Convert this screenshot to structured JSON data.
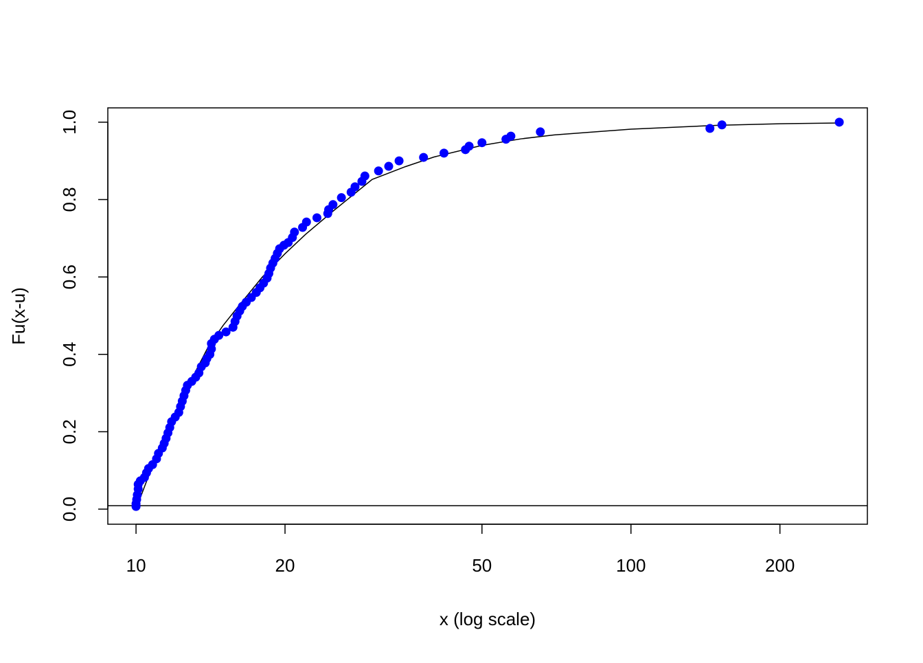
{
  "chart_data": {
    "type": "scatter",
    "xlabel": "x (log scale)",
    "ylabel": "Fu(x-u)",
    "xscale": "log",
    "xlim": [
      8.77,
      300.4
    ],
    "ylim": [
      -0.039,
      1.037
    ],
    "xticks": [
      10,
      20,
      50,
      100,
      200
    ],
    "yticks": [
      {
        "value": 0,
        "label": "0.0"
      },
      0.2,
      0.4,
      0.6,
      0.8,
      {
        "value": 1,
        "label": "1.0"
      }
    ],
    "hline": 0.009,
    "points": {
      "color": "#0000ff",
      "x": [
        10.0,
        10.0,
        10.03,
        10.06,
        10.1,
        10.1,
        10.2,
        10.4,
        10.5,
        10.6,
        10.8,
        11.0,
        11.1,
        11.3,
        11.4,
        11.5,
        11.6,
        11.7,
        11.8,
        12.0,
        12.2,
        12.3,
        12.4,
        12.5,
        12.6,
        12.7,
        12.96,
        13.2,
        13.4,
        13.55,
        13.8,
        13.9,
        14.1,
        14.2,
        14.2,
        14.4,
        14.7,
        15.2,
        15.7,
        15.85,
        16.0,
        16.2,
        16.4,
        16.7,
        17.1,
        17.5,
        17.8,
        18.1,
        18.4,
        18.55,
        18.7,
        18.9,
        19.1,
        19.3,
        19.5,
        19.9,
        20.3,
        20.7,
        20.9,
        21.7,
        22.1,
        23.2,
        24.4,
        24.5,
        25.0,
        26.0,
        27.2,
        27.7,
        28.6,
        29.0,
        30.9,
        32.4,
        34.0,
        38.1,
        41.9,
        46.3,
        47.1,
        50.0,
        55.9,
        57.2,
        65.6,
        144.4,
        152.7,
        263.6
      ],
      "values": [
        0.007,
        0.014,
        0.025,
        0.037,
        0.052,
        0.064,
        0.073,
        0.082,
        0.094,
        0.105,
        0.115,
        0.13,
        0.144,
        0.158,
        0.17,
        0.183,
        0.197,
        0.211,
        0.226,
        0.238,
        0.25,
        0.265,
        0.279,
        0.293,
        0.307,
        0.32,
        0.33,
        0.341,
        0.352,
        0.368,
        0.378,
        0.389,
        0.4,
        0.414,
        0.428,
        0.439,
        0.449,
        0.458,
        0.47,
        0.485,
        0.499,
        0.512,
        0.524,
        0.535,
        0.547,
        0.56,
        0.572,
        0.584,
        0.597,
        0.609,
        0.623,
        0.636,
        0.648,
        0.661,
        0.673,
        0.682,
        0.689,
        0.702,
        0.716,
        0.728,
        0.742,
        0.753,
        0.764,
        0.774,
        0.787,
        0.805,
        0.819,
        0.833,
        0.847,
        0.861,
        0.874,
        0.886,
        0.9,
        0.909,
        0.92,
        0.929,
        0.938,
        0.947,
        0.956,
        0.964,
        0.975,
        0.984,
        0.993,
        1.0
      ]
    },
    "fit": {
      "color": "#000000",
      "x": [
        10,
        11,
        12,
        13,
        14,
        15,
        16,
        18,
        20,
        22,
        25,
        30,
        35,
        40,
        50,
        60,
        70,
        100,
        150,
        200,
        263.6
      ],
      "values": [
        0,
        0.14,
        0.25,
        0.34,
        0.42,
        0.475,
        0.52,
        0.6,
        0.66,
        0.71,
        0.77,
        0.852,
        0.885,
        0.91,
        0.94,
        0.957,
        0.967,
        0.982,
        0.992,
        0.996,
        0.998
      ]
    }
  }
}
